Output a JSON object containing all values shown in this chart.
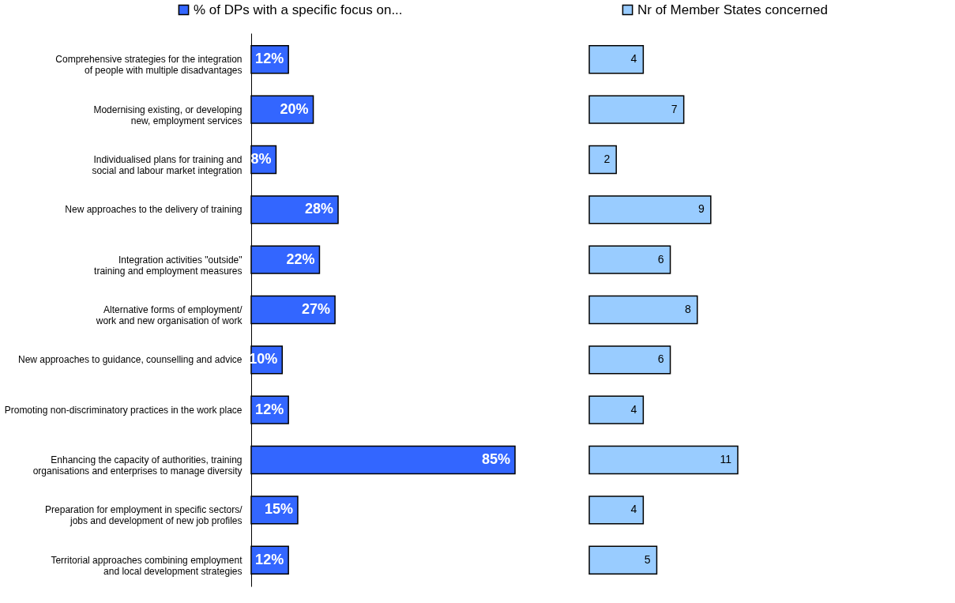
{
  "chart_data": [
    {
      "type": "bar",
      "orientation": "horizontal",
      "categories": [
        "Comprehensive strategies for the integration of people with multiple disadvantages",
        "Modernising existing, or developing new, employment services",
        "Individualised plans for training and social and labour market integration",
        "New approaches to the delivery of training",
        "Integration activities \"outside\" training and employment measures",
        "Alternative forms of employment/ work and new organisation of work",
        "New approaches to guidance, counselling and advice",
        "Promoting non-discriminatory practices in the work place",
        "Enhancing the capacity of authorities, training organisations and enterprises to manage diversity",
        "Preparation for employment in specific sectors/ jobs and development of new job profiles",
        "Territorial approaches combining employment and local development strategies"
      ],
      "series": [
        {
          "name": "% of DPs with a specific focus on...",
          "color": "#3366ff",
          "values": [
            12,
            20,
            8,
            28,
            22,
            27,
            10,
            12,
            85,
            15,
            12
          ],
          "value_labels": [
            "12%",
            "20%",
            "8%",
            "28%",
            "22%",
            "27%",
            "10%",
            "12%",
            "85%",
            "15%",
            "12%"
          ]
        }
      ],
      "legend": "top",
      "tick_labels": "y"
    },
    {
      "type": "bar",
      "orientation": "horizontal",
      "series": [
        {
          "name": "Nr of Member States concerned",
          "color": "#99ccff",
          "values": [
            4,
            7,
            2,
            9,
            6,
            8,
            6,
            4,
            11,
            4,
            5
          ]
        }
      ],
      "data_labels": true,
      "legend": "top right",
      "tick_labels": false
    }
  ]
}
